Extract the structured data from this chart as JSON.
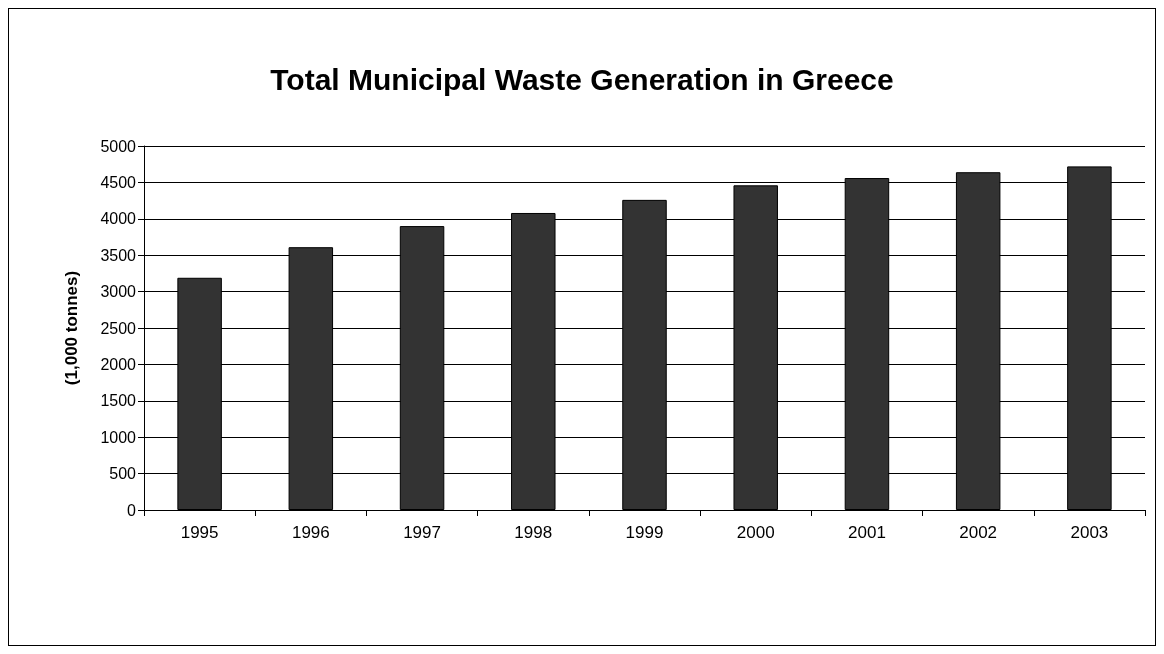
{
  "chart_data": {
    "type": "bar",
    "title": "Total Municipal Waste Generation in Greece",
    "ylabel": "(1,000 tonnes)",
    "categories": [
      "1995",
      "1996",
      "1997",
      "1998",
      "1999",
      "2000",
      "2001",
      "2002",
      "2003"
    ],
    "values": [
      3190,
      3610,
      3900,
      4080,
      4260,
      4460,
      4560,
      4640,
      4720
    ],
    "color": "#333333",
    "ylim": [
      0,
      5000
    ],
    "yticks": [
      0,
      500,
      1000,
      1500,
      2000,
      2500,
      3000,
      3500,
      4000,
      4500,
      5000
    ],
    "grid": "y"
  }
}
